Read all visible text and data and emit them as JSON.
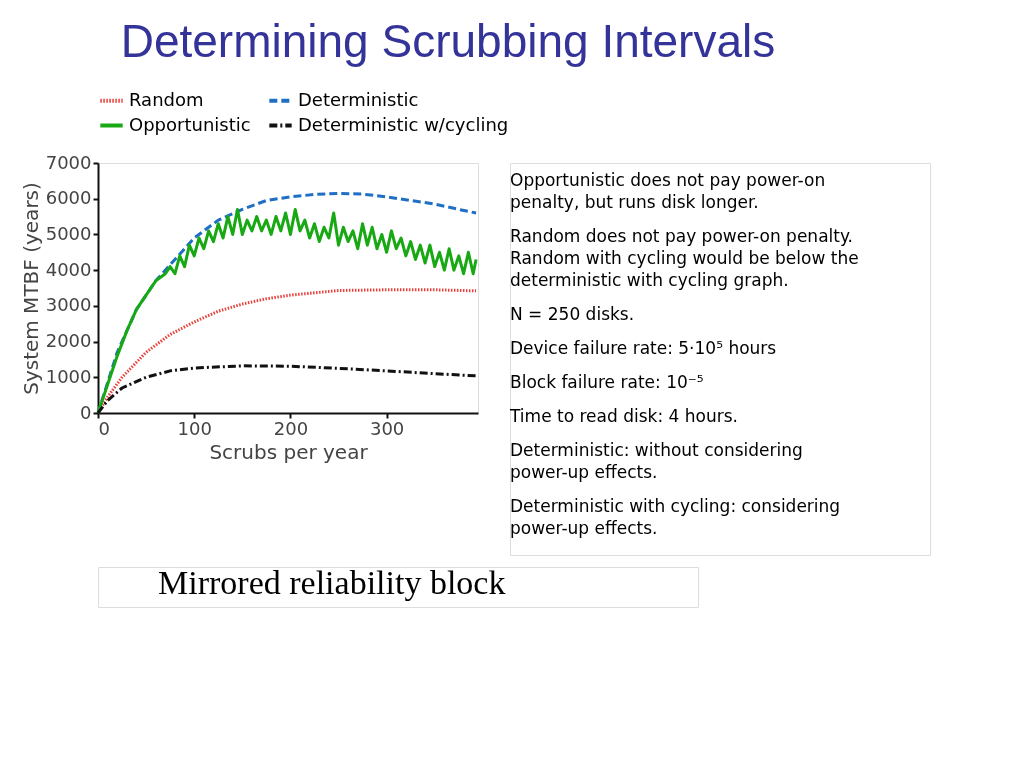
{
  "chart_data": {
    "type": "line",
    "title": "Determining Scrubbing Intervals",
    "xlabel": "Scrubs per year",
    "ylabel": "System MTBF (years)",
    "xlim": [
      0,
      395
    ],
    "xticks": [
      0,
      100,
      200,
      300
    ],
    "ylim": [
      0,
      7000
    ],
    "yticks": [
      0,
      1000,
      2000,
      3000,
      4000,
      5000,
      6000,
      7000
    ],
    "grid": false,
    "legend": "top",
    "marker": "none",
    "series": [
      {
        "name": "Random",
        "color": "#e8403a",
        "line_style": "dotted",
        "x": [
          0,
          10,
          25,
          50,
          75,
          100,
          125,
          150,
          175,
          200,
          250,
          300,
          350,
          393
        ],
        "values": [
          0,
          450,
          1000,
          1700,
          2200,
          2550,
          2850,
          3050,
          3200,
          3300,
          3430,
          3450,
          3450,
          3420
        ]
      },
      {
        "name": "Deterministic",
        "color": "#1f6fc5",
        "line_style": "dashed",
        "x": [
          0,
          20,
          40,
          60,
          80,
          100,
          125,
          150,
          175,
          200,
          225,
          250,
          275,
          300,
          325,
          350,
          375,
          393
        ],
        "values": [
          0,
          1700,
          2900,
          3700,
          4300,
          4900,
          5400,
          5700,
          5950,
          6050,
          6120,
          6150,
          6130,
          6050,
          5950,
          5850,
          5700,
          5600
        ]
      },
      {
        "name": "Opportunistic",
        "color": "#17a814",
        "line_style": "solid",
        "x": [
          0,
          10,
          20,
          30,
          40,
          50,
          60,
          70,
          75,
          80,
          85,
          90,
          95,
          100,
          105,
          110,
          115,
          120,
          125,
          130,
          135,
          140,
          145,
          150,
          155,
          160,
          165,
          170,
          175,
          180,
          185,
          190,
          195,
          200,
          205,
          210,
          215,
          220,
          225,
          230,
          235,
          240,
          245,
          250,
          255,
          260,
          265,
          270,
          275,
          280,
          285,
          290,
          295,
          300,
          305,
          310,
          315,
          320,
          325,
          330,
          335,
          340,
          345,
          350,
          355,
          360,
          365,
          370,
          375,
          380,
          385,
          390,
          393
        ],
        "values": [
          0,
          800,
          1600,
          2300,
          2900,
          3300,
          3700,
          3900,
          4100,
          3900,
          4400,
          4100,
          4700,
          4400,
          4900,
          4600,
          5100,
          4800,
          5300,
          4900,
          5500,
          5000,
          5700,
          5000,
          5400,
          5100,
          5500,
          5100,
          5400,
          5000,
          5500,
          5100,
          5600,
          5000,
          5700,
          5100,
          5400,
          4900,
          5300,
          4800,
          5200,
          4900,
          5600,
          4700,
          5200,
          4800,
          5100,
          4600,
          5300,
          4700,
          5200,
          4600,
          5000,
          4500,
          5100,
          4600,
          4900,
          4400,
          4800,
          4300,
          4700,
          4200,
          4700,
          4100,
          4500,
          4000,
          4600,
          4000,
          4400,
          3900,
          4500,
          3900,
          4300
        ]
      },
      {
        "name": "Deterministic w/cycling",
        "color": "#111111",
        "line_style": "dashdot",
        "x": [
          0,
          10,
          25,
          50,
          75,
          100,
          150,
          200,
          250,
          300,
          350,
          393
        ],
        "values": [
          0,
          350,
          700,
          1000,
          1180,
          1260,
          1320,
          1310,
          1250,
          1180,
          1100,
          1040
        ]
      }
    ],
    "annotations": [
      "Opportunistic does not pay power-on penalty, but runs disk longer.",
      "Random does not pay power-on penalty.  Random with cycling would be below the deterministic with cycling graph.",
      "N = 250 disks.",
      "Device failure rate: 5·10⁵ hours",
      "Block failure rate: 10⁻⁵",
      "Time to read disk: 4 hours.",
      "Deterministic: without considering power-up effects.",
      "Deterministic with cycling: considering power-up effects.",
      "Mirrored reliability block"
    ]
  }
}
